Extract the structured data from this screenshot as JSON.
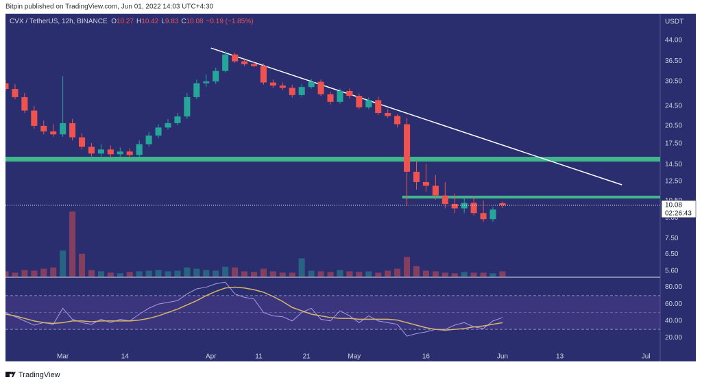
{
  "header": {
    "text": "Bitpin published on TradingView.com, Jun 01, 2022 14:03 UTC+4:30"
  },
  "footer": {
    "brand": "TradingView"
  },
  "chart_data": {
    "type": "candlestick",
    "legend": {
      "symbol": "CVX / TetherUS, 12h, BINANCE",
      "labels": [
        "O",
        "H",
        "L",
        "C"
      ],
      "change": "−0.19 (−1.85%)"
    },
    "currency": "USDT",
    "countdown": "02:26:43",
    "log_scale": true,
    "up_color": "#26a69a",
    "down_color": "#ef5350",
    "background": "#2b2e6e",
    "x": [
      "2022-02-17",
      "2022-02-19",
      "2022-02-21",
      "2022-02-23",
      "2022-02-25",
      "2022-02-27",
      "2022-03-01",
      "2022-03-03",
      "2022-03-05",
      "2022-03-07",
      "2022-03-09",
      "2022-03-11",
      "2022-03-13",
      "2022-03-15",
      "2022-03-17",
      "2022-03-19",
      "2022-03-21",
      "2022-03-23",
      "2022-03-25",
      "2022-03-27",
      "2022-03-29",
      "2022-03-31",
      "2022-04-02",
      "2022-04-04",
      "2022-04-06",
      "2022-04-08",
      "2022-04-10",
      "2022-04-12",
      "2022-04-14",
      "2022-04-16",
      "2022-04-18",
      "2022-04-20",
      "2022-04-22",
      "2022-04-24",
      "2022-04-26",
      "2022-04-28",
      "2022-04-30",
      "2022-05-02",
      "2022-05-04",
      "2022-05-06",
      "2022-05-08",
      "2022-05-10",
      "2022-05-12",
      "2022-05-14",
      "2022-05-16",
      "2022-05-18",
      "2022-05-20",
      "2022-05-22",
      "2022-05-24",
      "2022-05-26",
      "2022-05-28",
      "2022-05-30",
      "2022-06-01"
    ],
    "open": [
      30.0,
      28.5,
      26.5,
      23.5,
      20.5,
      19.5,
      19.0,
      21.0,
      18.5,
      17.0,
      16.0,
      16.6,
      15.9,
      16.3,
      15.8,
      17.4,
      18.8,
      20.2,
      21.0,
      22.3,
      26.5,
      30.0,
      30.5,
      33.5,
      38.8,
      36.5,
      35.6,
      35.0,
      30.2,
      29.4,
      28.8,
      27.0,
      29.0,
      30.4,
      27.2,
      25.4,
      28.0,
      26.8,
      24.2,
      25.8,
      23.0,
      22.4,
      20.8,
      13.6,
      12.4,
      12.0,
      11.0,
      10.2,
      9.8,
      10.3,
      9.4,
      8.9,
      10.27
    ],
    "high": [
      31.0,
      29.8,
      27.5,
      24.5,
      21.5,
      20.8,
      32.0,
      21.8,
      19.2,
      17.6,
      17.4,
      17.2,
      16.9,
      16.8,
      18.0,
      19.4,
      20.8,
      21.8,
      23.0,
      27.5,
      31.0,
      32.5,
      34.5,
      40.0,
      39.5,
      37.2,
      36.4,
      35.8,
      31.0,
      30.2,
      29.6,
      29.8,
      31.2,
      31.0,
      27.8,
      28.6,
      28.6,
      27.4,
      26.4,
      26.6,
      23.8,
      22.8,
      22.0,
      15.0,
      14.6,
      13.2,
      12.4,
      11.2,
      10.8,
      10.9,
      10.5,
      9.9,
      10.42
    ],
    "low": [
      28.0,
      26.0,
      23.0,
      20.0,
      19.0,
      18.6,
      18.6,
      18.0,
      16.6,
      15.6,
      15.6,
      15.5,
      15.5,
      15.4,
      15.5,
      17.0,
      18.4,
      19.8,
      20.6,
      21.8,
      26.0,
      29.0,
      29.8,
      33.0,
      36.0,
      35.0,
      34.6,
      29.6,
      28.8,
      28.2,
      26.4,
      26.6,
      28.6,
      26.8,
      24.8,
      25.0,
      26.2,
      23.8,
      23.8,
      22.6,
      22.0,
      20.2,
      10.0,
      11.6,
      11.4,
      10.6,
      9.8,
      9.4,
      9.4,
      9.2,
      8.7,
      8.7,
      9.83
    ],
    "close": [
      28.5,
      26.5,
      23.5,
      20.5,
      19.5,
      19.0,
      21.0,
      18.5,
      17.0,
      16.0,
      16.6,
      15.9,
      16.3,
      15.8,
      17.4,
      18.8,
      20.2,
      21.0,
      22.3,
      26.5,
      30.0,
      30.5,
      33.5,
      38.8,
      36.5,
      35.6,
      35.0,
      30.2,
      29.4,
      28.8,
      27.0,
      29.0,
      30.4,
      27.2,
      25.4,
      28.0,
      26.8,
      24.2,
      25.8,
      23.0,
      22.4,
      20.8,
      13.6,
      12.4,
      12.0,
      11.0,
      10.2,
      9.8,
      10.3,
      9.4,
      8.9,
      9.7,
      10.08
    ],
    "volume": [
      8,
      6,
      10,
      9,
      12,
      14,
      40,
      100,
      35,
      10,
      8,
      6,
      5,
      7,
      8,
      9,
      10,
      8,
      9,
      14,
      12,
      10,
      9,
      15,
      14,
      8,
      7,
      12,
      8,
      6,
      6,
      28,
      9,
      8,
      7,
      10,
      8,
      7,
      8,
      6,
      9,
      12,
      30,
      16,
      9,
      8,
      6,
      5,
      7,
      6,
      6,
      5,
      8
    ],
    "xlim": [
      "2022-02-17",
      "2022-07-04"
    ],
    "xticks": [
      {
        "value": "2022-03-01",
        "label": "Mar"
      },
      {
        "value": "2022-03-14",
        "label": "14"
      },
      {
        "value": "2022-04-01",
        "label": "Apr"
      },
      {
        "value": "2022-04-11",
        "label": "11"
      },
      {
        "value": "2022-04-21",
        "label": "21"
      },
      {
        "value": "2022-05-01",
        "label": "May"
      },
      {
        "value": "2022-05-16",
        "label": "16"
      },
      {
        "value": "2022-06-01",
        "label": "Jun"
      },
      {
        "value": "2022-06-13",
        "label": "13"
      },
      {
        "value": "2022-07-01",
        "label": "Jul"
      }
    ],
    "ylim": [
      5.33,
      55.2
    ],
    "yticks": [
      {
        "value": 44,
        "label": "44.00"
      },
      {
        "value": 36.5,
        "label": "36.50"
      },
      {
        "value": 30.5,
        "label": "30.50"
      },
      {
        "value": 24.5,
        "label": "24.50"
      },
      {
        "value": 20.5,
        "label": "20.50"
      },
      {
        "value": 17.5,
        "label": "17.50"
      },
      {
        "value": 14.5,
        "label": "14.50"
      },
      {
        "value": 12.5,
        "label": "12.50"
      },
      {
        "value": 10.5,
        "label": "10.50"
      },
      {
        "value": 9,
        "label": "9.00"
      },
      {
        "value": 7.5,
        "label": "7.50"
      },
      {
        "value": 6.5,
        "label": "6.50"
      },
      {
        "value": 5.6,
        "label": "5.60"
      }
    ],
    "zone_color": "#3fb68b",
    "zones": [
      {
        "low": 14.9,
        "high": 15.55
      },
      {
        "low": 10.71,
        "high": 10.98,
        "from": "2022-05-11"
      }
    ],
    "trendline": {
      "x": [
        "2022-04-01",
        "2022-06-26"
      ],
      "y": [
        41.1,
        12.1
      ],
      "color": "#ffffff"
    },
    "rsi": {
      "color": "#a99be6",
      "ma_color": "#d8b66a",
      "values": [
        50,
        45,
        40,
        35,
        38,
        36,
        55,
        42,
        38,
        36,
        42,
        38,
        42,
        40,
        48,
        55,
        60,
        62,
        64,
        72,
        78,
        80,
        84,
        86,
        72,
        68,
        66,
        50,
        46,
        45,
        40,
        50,
        55,
        42,
        40,
        52,
        46,
        38,
        46,
        40,
        38,
        36,
        22,
        25,
        27,
        30,
        30,
        35,
        38,
        33,
        31,
        40,
        44
      ],
      "ma": [
        48,
        46,
        43,
        40,
        38,
        37,
        38,
        40,
        40,
        39,
        40,
        40,
        40,
        40,
        41,
        43,
        46,
        50,
        54,
        59,
        64,
        70,
        75,
        79,
        80,
        79,
        77,
        74,
        69,
        63,
        56,
        52,
        48,
        46,
        44,
        43,
        43,
        42,
        42,
        42,
        42,
        41,
        38,
        35,
        32,
        30,
        29,
        30,
        31,
        33,
        34,
        36,
        38
      ],
      "ylim": [
        5,
        91
      ],
      "yticks": [
        {
          "value": 80,
          "label": "80.00"
        },
        {
          "value": 60,
          "label": "60.00"
        },
        {
          "value": 40,
          "label": "40.00"
        },
        {
          "value": 20,
          "label": "20.00"
        }
      ],
      "levels": [
        30,
        50,
        70
      ]
    }
  }
}
